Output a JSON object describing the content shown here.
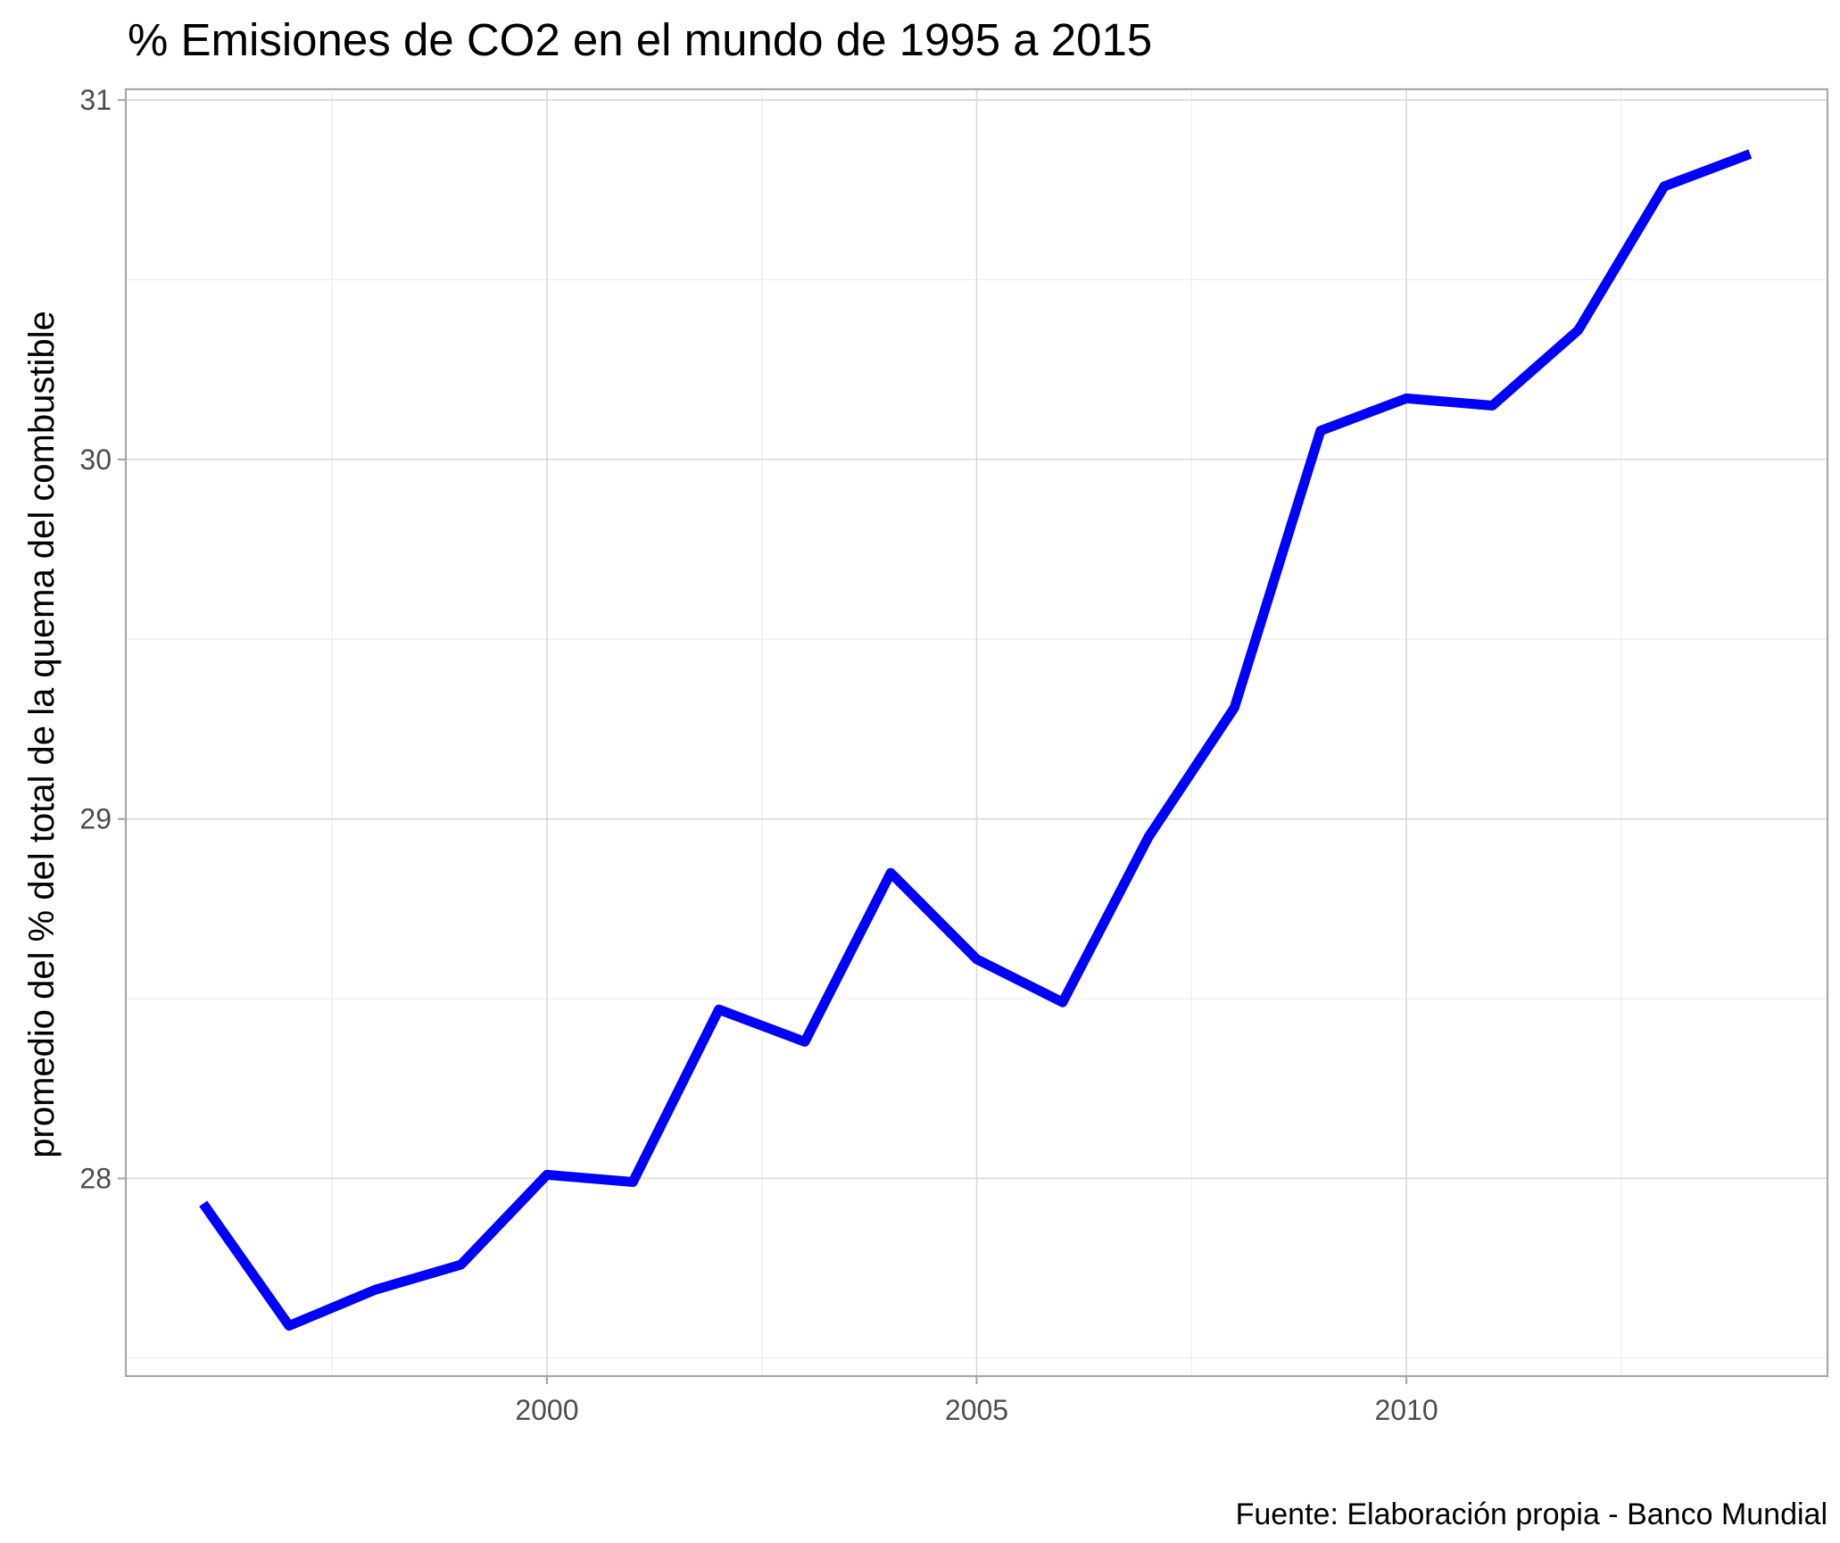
{
  "chart_data": {
    "type": "line",
    "title": "% Emisiones de CO2 en el mundo de 1995 a 2015",
    "xlabel": "",
    "ylabel": "promedio del % del total de la quema del combustible",
    "caption": "Fuente: Elaboración propia - Banco Mundial",
    "x": [
      1996,
      1997,
      1998,
      1999,
      2000,
      2001,
      2002,
      2003,
      2004,
      2005,
      2006,
      2007,
      2008,
      2009,
      2010,
      2011,
      2012,
      2013,
      2014
    ],
    "series": [
      {
        "values": [
          27.93,
          27.59,
          27.69,
          27.76,
          28.01,
          27.99,
          28.47,
          28.38,
          28.85,
          28.61,
          28.49,
          28.95,
          29.31,
          30.08,
          30.17,
          30.15,
          30.36,
          30.76,
          30.85
        ]
      }
    ],
    "xlim": [
      1995.1,
      2014.9
    ],
    "ylim": [
      27.45,
      31.03
    ],
    "x_ticks": [
      2000,
      2005,
      2010
    ],
    "y_ticks": [
      28,
      29,
      30,
      31
    ],
    "x_tick_labels": [
      "2000",
      "2005",
      "2010"
    ],
    "y_tick_labels": [
      "28",
      "29",
      "30",
      "31"
    ],
    "grid": true,
    "legend": "none",
    "line_color": "#0000ff"
  }
}
